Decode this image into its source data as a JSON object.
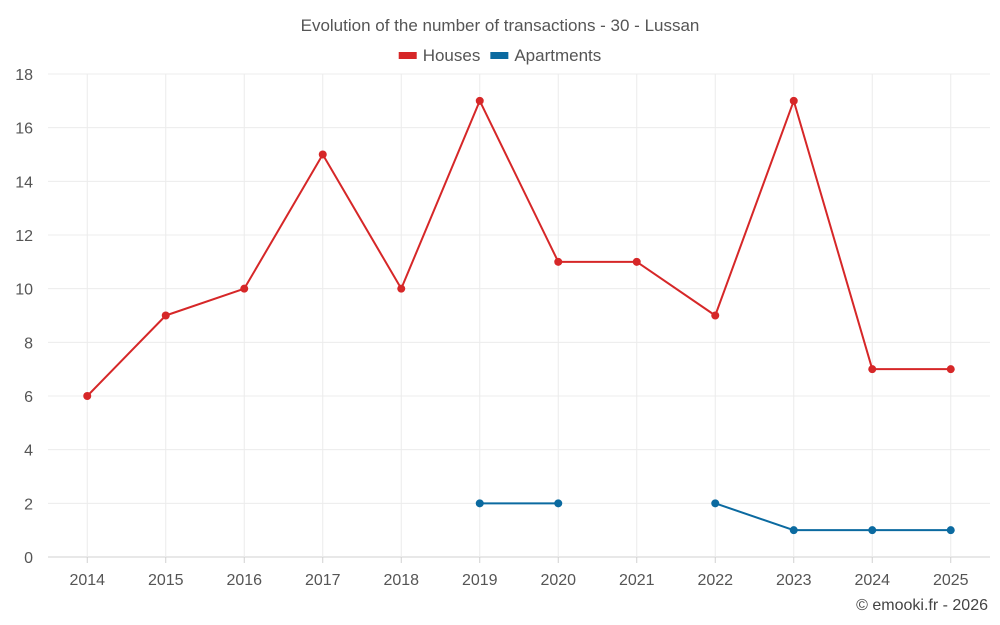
{
  "chart_data": {
    "type": "line",
    "title": "Evolution of the number of transactions - 30 - Lussan",
    "xlabel": "",
    "ylabel": "",
    "categories": [
      "2014",
      "2015",
      "2016",
      "2017",
      "2018",
      "2019",
      "2020",
      "2021",
      "2022",
      "2023",
      "2024",
      "2025"
    ],
    "ylim": [
      0,
      18
    ],
    "yticks": [
      0,
      2,
      4,
      6,
      8,
      10,
      12,
      14,
      16,
      18
    ],
    "grid": true,
    "legend_position": "top-center",
    "series": [
      {
        "name": "Houses",
        "color": "#d62728",
        "values": [
          6,
          9,
          10,
          15,
          10,
          17,
          11,
          11,
          9,
          17,
          7,
          7
        ]
      },
      {
        "name": "Apartments",
        "color": "#0b6aa0",
        "values": [
          null,
          null,
          null,
          null,
          null,
          2,
          2,
          null,
          2,
          1,
          1,
          1
        ]
      }
    ]
  },
  "credit": "© emooki.fr - 2026"
}
